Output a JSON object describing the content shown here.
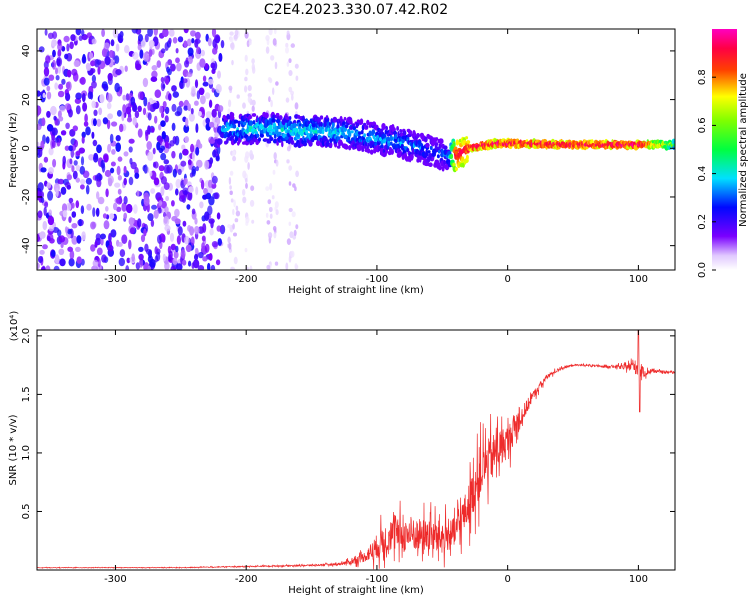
{
  "title": "C2E4.2023.330.07.42.R02",
  "colors": {
    "snr_line": "#ee2b2b",
    "frame": "#000000",
    "background": "#ffffff"
  },
  "chart_data": [
    {
      "type": "heatmap",
      "title": "C2E4.2023.330.07.42.R02",
      "xlabel": "Height of straight line (km)",
      "ylabel": "Frequency (Hz)",
      "xlim": [
        -360,
        128
      ],
      "ylim": [
        -50,
        49
      ],
      "xticks": [
        -300,
        -200,
        -100,
        0,
        100
      ],
      "yticks": [
        -40,
        -20,
        0,
        20,
        40
      ],
      "xtick_labels": [
        "-300",
        "-200",
        "-100",
        "0",
        "100"
      ],
      "ytick_labels": [
        "-40",
        "-20",
        "0",
        "20",
        "40"
      ],
      "colorbar": {
        "label": "Normalized spectral amplitude",
        "range": [
          0.0,
          1.0
        ],
        "ticks": [
          0.0,
          0.2,
          0.4,
          0.6,
          0.8
        ],
        "tick_labels": [
          "0.0",
          "0.2",
          "0.4",
          "0.6",
          "0.8"
        ],
        "colormap": "rainbow (white-violet-blue-cyan-green-yellow-red-magenta)"
      },
      "regions": [
        {
          "name": "noise",
          "x_range": [
            -360,
            -218
          ],
          "freq_range": [
            -50,
            49
          ],
          "amplitude": [
            0.05,
            0.25
          ]
        },
        {
          "name": "faint-noise-columns",
          "x": [
            -210,
            -198,
            -180,
            -165
          ],
          "freq_range": [
            -50,
            49
          ],
          "amplitude": [
            0.02,
            0.08
          ]
        }
      ],
      "ridge": {
        "x": [
          -218,
          -200,
          -180,
          -160,
          -140,
          -120,
          -100,
          -80,
          -60,
          -45,
          -40,
          -30,
          -20,
          -10,
          0,
          50,
          100,
          128
        ],
        "freq": [
          8,
          8,
          8,
          7,
          7,
          6,
          4,
          2,
          -1,
          -3,
          -3,
          0,
          1,
          2,
          2,
          1.5,
          1.5,
          1.5
        ],
        "amplitude": [
          0.35,
          0.4,
          0.4,
          0.4,
          0.4,
          0.35,
          0.35,
          0.35,
          0.3,
          0.3,
          0.9,
          0.9,
          0.95,
          0.95,
          0.95,
          0.95,
          0.95,
          0.6
        ]
      }
    },
    {
      "type": "line",
      "xlabel": "Height of straight line (km)",
      "ylabel": "SNR (10 * v/v)",
      "y_multiplier": "(x10⁴)",
      "xlim": [
        -360,
        128
      ],
      "ylim": [
        0,
        2.05
      ],
      "xticks": [
        -300,
        -200,
        -100,
        0,
        100
      ],
      "yticks": [
        0.5,
        1.0,
        1.5,
        2.0
      ],
      "xtick_labels": [
        "-300",
        "-200",
        "-100",
        "0",
        "100"
      ],
      "ytick_labels": [
        "0.5",
        "1.0",
        "1.5",
        "2.0"
      ],
      "series": [
        {
          "name": "SNR",
          "x": [
            -360,
            -300,
            -250,
            -200,
            -150,
            -130,
            -120,
            -110,
            -100,
            -90,
            -80,
            -70,
            -60,
            -50,
            -40,
            -30,
            -20,
            -10,
            0,
            10,
            20,
            30,
            40,
            50,
            60,
            70,
            80,
            90,
            95,
            100,
            105,
            110,
            120,
            128
          ],
          "y": [
            0.02,
            0.02,
            0.02,
            0.03,
            0.04,
            0.05,
            0.07,
            0.11,
            0.2,
            0.3,
            0.3,
            0.3,
            0.3,
            0.28,
            0.32,
            0.55,
            0.85,
            1.0,
            1.1,
            1.3,
            1.5,
            1.65,
            1.72,
            1.75,
            1.75,
            1.74,
            1.74,
            1.73,
            1.75,
            1.72,
            1.68,
            1.7,
            1.69,
            1.69
          ],
          "noise_amplitude": [
            0.003,
            0.003,
            0.003,
            0.005,
            0.008,
            0.015,
            0.03,
            0.06,
            0.15,
            0.2,
            0.2,
            0.2,
            0.2,
            0.2,
            0.18,
            0.25,
            0.3,
            0.25,
            0.2,
            0.12,
            0.05,
            0.03,
            0.015,
            0.01,
            0.01,
            0.01,
            0.015,
            0.03,
            0.05,
            0.12,
            0.04,
            0.02,
            0.01,
            0.01
          ],
          "spikes": [
            {
              "x": 100,
              "y": 2.05
            },
            {
              "x": 101,
              "y": 1.35
            }
          ]
        }
      ]
    }
  ]
}
